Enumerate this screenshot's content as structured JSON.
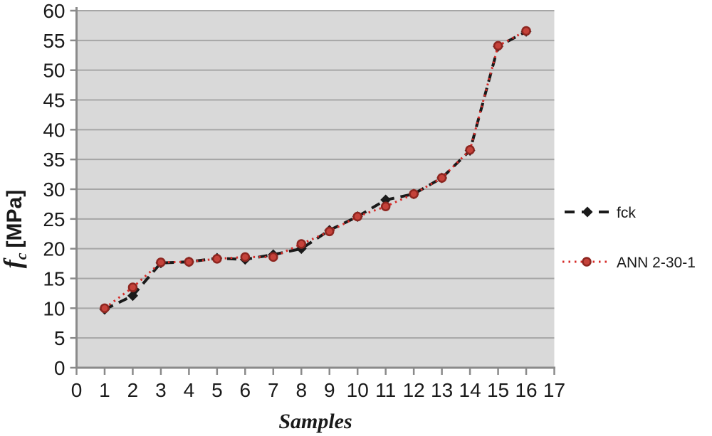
{
  "chart_data": {
    "type": "line",
    "title": "",
    "xlabel": "Samples",
    "ylabel": "fc [MPa]",
    "ylabel_parts": {
      "symbol": "f",
      "subscript": "c",
      "unit": "[MPa]"
    },
    "xlim": [
      0,
      17
    ],
    "ylim": [
      0,
      60
    ],
    "xticks": [
      0,
      1,
      2,
      3,
      4,
      5,
      6,
      7,
      8,
      9,
      10,
      11,
      12,
      13,
      14,
      15,
      16,
      17
    ],
    "yticks": [
      0,
      5,
      10,
      15,
      20,
      25,
      30,
      35,
      40,
      45,
      50,
      55,
      60
    ],
    "grid": true,
    "legend_position": "right",
    "x": [
      1,
      2,
      3,
      4,
      5,
      6,
      7,
      8,
      9,
      10,
      11,
      12,
      13,
      14,
      15,
      16
    ],
    "series": [
      {
        "name": "fck",
        "line_style": "dashed",
        "marker": "diamond",
        "color": "#1a1a1a",
        "values": [
          9.8,
          12.1,
          17.6,
          17.8,
          18.4,
          18.2,
          19.0,
          20.0,
          23.1,
          25.4,
          28.2,
          29.2,
          31.9,
          36.5,
          54.0,
          56.5
        ]
      },
      {
        "name": "ANN 2-30-1",
        "line_style": "dotted",
        "marker": "circle",
        "color": "#d62b28",
        "marker_fill": "#c5423a",
        "marker_stroke": "#8e2620",
        "values": [
          10.0,
          13.5,
          17.7,
          17.8,
          18.3,
          18.6,
          18.6,
          20.8,
          22.9,
          25.4,
          27.1,
          29.2,
          31.9,
          36.6,
          54.1,
          56.6
        ]
      }
    ],
    "colors": {
      "plot_bg": "#d9d9d9",
      "grid": "#a6a6a6",
      "axis": "#8a8a8a",
      "text": "#1a1a1a"
    }
  }
}
